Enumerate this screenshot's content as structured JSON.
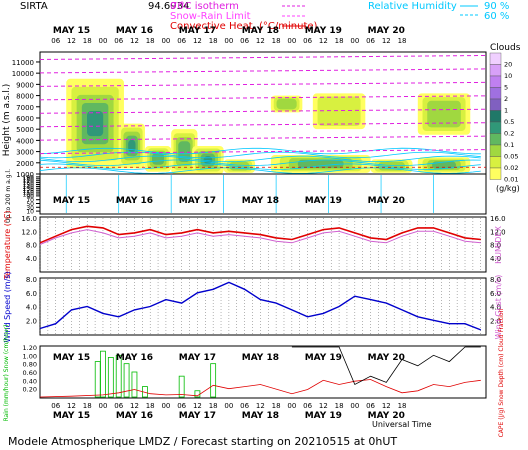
{
  "header": {
    "site": "SIRTA",
    "coords": "94.6934",
    "legend_left": [
      {
        "label": "0 °C isotherm",
        "color": "#e020e0"
      },
      {
        "label": "Snow-Rain Limit",
        "color": "#ff40ff"
      },
      {
        "label": "Convective Heat. (°C/minute)",
        "color": "#e00000"
      }
    ],
    "legend_right": [
      {
        "label": "Relative Humidity",
        "value": "90 %",
        "color": "#00c8ff"
      },
      {
        "label": "",
        "value": "60 %",
        "color": "#00c8ff"
      }
    ],
    "top_label_alt": "70"
  },
  "footer": {
    "title": "Modele Atmospherique LMDZ / Forecast starting on 20210515 at 0hUT",
    "xlabel": "Universal Time"
  },
  "colors": {
    "temperature": "#e00000",
    "humidex": "#d060d0",
    "wind": "#0000cc",
    "rain": "#00bb00",
    "cape": "#e00000",
    "cloud_fraction": "#000000",
    "isotherm": "#e020e0",
    "rh": "#00c8ff"
  },
  "chart_data": [
    {
      "type": "heatmap",
      "name": "clouds",
      "title": "",
      "ylabel": "Height (m a.s.l.)",
      "ylabel2": "Up to 200 m a.g.l.",
      "colorbar_title": "Clouds",
      "colorbar_unit": "(g/kg)",
      "colorbar_levels": [
        "0.01",
        "0.02",
        "0.05",
        "0.1",
        "0.2",
        "0.5",
        "1",
        "2",
        "5",
        "10",
        "20"
      ],
      "colorbar_colors": [
        "#ffff60",
        "#d8f040",
        "#a0d840",
        "#60b860",
        "#309878",
        "#207868",
        "#8060c0",
        "#a070e0",
        "#c080f0",
        "#d8a0f8",
        "#f0d0ff"
      ],
      "yticks_upper": [
        1000,
        2000,
        3000,
        4000,
        5000,
        6000,
        7000,
        8000,
        9000,
        10000,
        11000
      ],
      "yticks_lower": [
        0,
        10,
        20,
        30,
        40,
        50,
        60,
        70,
        80,
        90,
        100,
        110,
        120,
        130,
        140,
        150,
        160,
        170,
        180,
        190,
        200
      ],
      "yticks_lower_shown": [
        10,
        30,
        50,
        70,
        90,
        100,
        110,
        120,
        130,
        140,
        150,
        160,
        170,
        180,
        190
      ],
      "ylim_upper": [
        1000,
        11800
      ],
      "isotherm_0C_m": 2500,
      "cloud_blobs": [
        {
          "t0": 10,
          "t1": 32,
          "h0": 1500,
          "h1": 9500,
          "level": 4
        },
        {
          "t0": 30,
          "t1": 40,
          "h0": 1500,
          "h1": 5500,
          "level": 4
        },
        {
          "t0": 40,
          "t1": 50,
          "h0": 1200,
          "h1": 3500,
          "level": 3
        },
        {
          "t0": 50,
          "t1": 60,
          "h0": 1000,
          "h1": 5000,
          "level": 3
        },
        {
          "t0": 58,
          "t1": 70,
          "h0": 1000,
          "h1": 3500,
          "level": 4
        },
        {
          "t0": 70,
          "t1": 82,
          "h0": 1100,
          "h1": 2300,
          "level": 2
        },
        {
          "t0": 88,
          "t1": 126,
          "h0": 1100,
          "h1": 2700,
          "level": 3
        },
        {
          "t0": 88,
          "t1": 100,
          "h0": 6500,
          "h1": 8000,
          "level": 2
        },
        {
          "t0": 104,
          "t1": 124,
          "h0": 5000,
          "h1": 8200,
          "level": 1
        },
        {
          "t0": 126,
          "t1": 142,
          "h0": 1100,
          "h1": 2300,
          "level": 2
        },
        {
          "t0": 144,
          "t1": 164,
          "h0": 1100,
          "h1": 2500,
          "level": 3
        },
        {
          "t0": 144,
          "t1": 164,
          "h0": 4500,
          "h1": 8200,
          "level": 2
        }
      ]
    },
    {
      "type": "line",
      "name": "temperature",
      "ylabel": "Temperature (°C)",
      "ylabel2": "HUMIDEX",
      "ylim": [
        0,
        16
      ],
      "yticks": [
        "4.0",
        "8.0",
        "12.0",
        "16.0"
      ],
      "x": [
        0,
        6,
        12,
        18,
        24,
        30,
        36,
        42,
        48,
        54,
        60,
        66,
        72,
        78,
        84,
        90,
        96,
        102,
        108,
        114,
        120,
        126,
        132,
        138,
        144,
        150,
        156,
        162,
        168
      ],
      "series": [
        {
          "name": "Temperature",
          "values": [
            8.5,
            10.5,
            12.5,
            13.5,
            13.0,
            11.0,
            11.5,
            12.5,
            11.0,
            11.5,
            12.5,
            11.5,
            12.0,
            11.5,
            11.0,
            10.0,
            9.5,
            11.0,
            12.5,
            13.0,
            11.5,
            10.0,
            9.5,
            11.5,
            13.0,
            13.0,
            11.5,
            10.0,
            9.5
          ]
        },
        {
          "name": "HUMIDEX",
          "values": [
            8.0,
            10.0,
            11.5,
            12.5,
            11.5,
            10.0,
            10.5,
            11.5,
            10.0,
            10.5,
            11.5,
            10.5,
            11.0,
            10.5,
            10.0,
            9.0,
            8.5,
            10.0,
            11.5,
            12.0,
            10.5,
            9.0,
            8.5,
            10.5,
            12.0,
            12.0,
            10.5,
            9.0,
            8.5
          ]
        }
      ]
    },
    {
      "type": "line",
      "name": "wind",
      "ylabel": "Wind Speed (m/s)",
      "ylabel2": "Wind Gust (m/s)",
      "ylim": [
        0,
        8
      ],
      "yticks": [
        "2.0",
        "4.0",
        "6.0",
        "8.0"
      ],
      "x": [
        0,
        6,
        12,
        18,
        24,
        30,
        36,
        42,
        48,
        54,
        60,
        66,
        72,
        78,
        84,
        90,
        96,
        102,
        108,
        114,
        120,
        126,
        132,
        138,
        144,
        150,
        156,
        162,
        168
      ],
      "series": [
        {
          "name": "Wind Speed",
          "values": [
            0.8,
            1.5,
            3.5,
            4.0,
            3.0,
            2.5,
            3.5,
            4.0,
            5.0,
            4.5,
            6.0,
            6.5,
            7.5,
            6.5,
            5.0,
            4.5,
            3.5,
            2.5,
            3.0,
            4.0,
            5.5,
            5.0,
            4.5,
            3.5,
            2.5,
            2.0,
            1.5,
            1.5,
            0.6
          ]
        }
      ]
    },
    {
      "type": "bar",
      "name": "precipitation",
      "ylabel": "Rain (mm/hour) Snow (cm/hour)",
      "ylabel2": "CAPE (J/g) Snow Depth (cm) Cloud Fraction",
      "ylim": [
        0,
        1.2
      ],
      "yticks": [
        "0.20",
        "0.40",
        "0.60",
        "0.80",
        "1.00",
        "1.20"
      ],
      "rain": [
        {
          "t": 22,
          "v": 0.85
        },
        {
          "t": 24,
          "v": 1.1
        },
        {
          "t": 27,
          "v": 0.95
        },
        {
          "t": 30,
          "v": 1.0
        },
        {
          "t": 33,
          "v": 0.8
        },
        {
          "t": 36,
          "v": 0.6
        },
        {
          "t": 40,
          "v": 0.25
        },
        {
          "t": 54,
          "v": 0.5
        },
        {
          "t": 60,
          "v": 0.15
        },
        {
          "t": 66,
          "v": 0.8
        }
      ],
      "cape_x": [
        0,
        12,
        24,
        30,
        36,
        42,
        48,
        54,
        60,
        66,
        72,
        78,
        84,
        96,
        102,
        108,
        114,
        120,
        126,
        132,
        138,
        144,
        150,
        156,
        162,
        168
      ],
      "cape": [
        0.0,
        0.02,
        0.05,
        0.1,
        0.18,
        0.08,
        0.05,
        0.06,
        0.03,
        0.28,
        0.2,
        0.25,
        0.3,
        0.08,
        0.18,
        0.4,
        0.3,
        0.38,
        0.42,
        0.25,
        0.1,
        0.15,
        0.3,
        0.25,
        0.35,
        0.4
      ],
      "cloud_frac_x": [
        96,
        102,
        108,
        114,
        120,
        126,
        132,
        138,
        144,
        150,
        156,
        162,
        168
      ],
      "cloud_frac": [
        1.2,
        1.2,
        1.2,
        1.2,
        0.3,
        0.5,
        0.35,
        0.9,
        0.75,
        1.0,
        0.85,
        1.2,
        1.2
      ]
    }
  ],
  "x_axis": {
    "days": [
      "MAY 15",
      "MAY 16",
      "MAY 17",
      "MAY 18",
      "MAY 19",
      "MAY 20"
    ],
    "hours": [
      "06",
      "12",
      "18",
      "00",
      "06",
      "12",
      "18",
      "00",
      "06",
      "12",
      "18",
      "00",
      "06",
      "12",
      "18",
      "00",
      "06",
      "12",
      "18",
      "00",
      "06",
      "12",
      "18"
    ],
    "hours_shown": [
      "06",
      "12",
      "18",
      "00",
      "06",
      "12",
      "18",
      "00",
      "06",
      "12",
      "18",
      "00",
      "06",
      "12",
      "18",
      "00",
      "06",
      "12",
      "18",
      "00",
      "06",
      "12",
      "18"
    ]
  }
}
